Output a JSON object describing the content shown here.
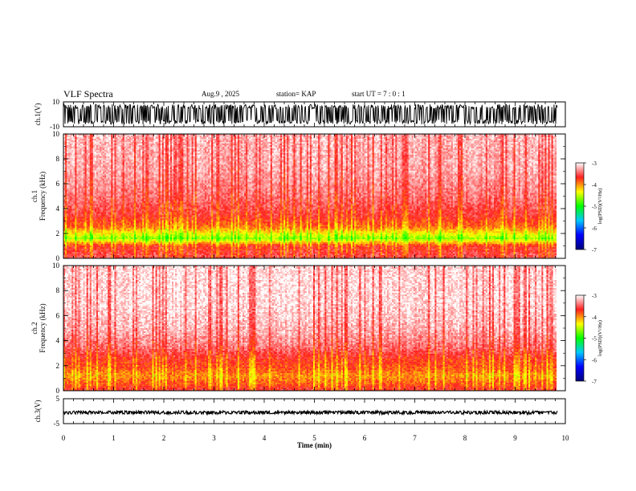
{
  "header": {
    "title": "VLF Spectra",
    "date": "Aug.9 , 2025",
    "station": "station= KAP",
    "start_ut": "start UT = 7 : 0 : 1"
  },
  "colorbar": {
    "label": "log(PSD)(V²/Hz)",
    "ticks": [
      "-3",
      "-4",
      "-5",
      "-6",
      "-7"
    ],
    "colors": [
      "#ffffff",
      "#ff2020",
      "#ffff00",
      "#00ff00",
      "#00c8ff",
      "#0000ff",
      "#00007a"
    ]
  },
  "chart_data": [
    {
      "type": "line",
      "panel": "waveform-ch1",
      "ylabel": "ch.1(V)",
      "ylim": [
        -10,
        10
      ],
      "yticks": [
        "10",
        "-10"
      ],
      "xlim": [
        0,
        10
      ],
      "signal_band": [
        -8,
        8
      ],
      "color": "#000000"
    },
    {
      "type": "heatmap",
      "panel": "spectrogram-ch1",
      "ylabel": "ch.1 Frequency (kHz)",
      "ylim": [
        0,
        10
      ],
      "yticks": [
        "0",
        "2",
        "4",
        "6",
        "8",
        "10"
      ],
      "xlim": [
        0,
        10
      ],
      "data_end_min": 9.82,
      "colorbar_range": [
        -7,
        -3
      ],
      "intensity_profile": [
        {
          "f": 0.0,
          "logpsd": -3.5
        },
        {
          "f": 0.5,
          "logpsd": -3.6
        },
        {
          "f": 1.0,
          "logpsd": -3.7
        },
        {
          "f": 1.6,
          "logpsd": -4.6
        },
        {
          "f": 2.0,
          "logpsd": -4.3
        },
        {
          "f": 2.5,
          "logpsd": -3.9
        },
        {
          "f": 3.5,
          "logpsd": -3.6
        },
        {
          "f": 5.0,
          "logpsd": -3.4
        },
        {
          "f": 7.0,
          "logpsd": -3.25
        },
        {
          "f": 10.0,
          "logpsd": -3.2
        }
      ]
    },
    {
      "type": "heatmap",
      "panel": "spectrogram-ch2",
      "ylabel": "ch.2 Frequency (kHz)",
      "ylim": [
        0,
        10
      ],
      "yticks": [
        "0",
        "2",
        "4",
        "6",
        "8",
        "10"
      ],
      "xlim": [
        0,
        10
      ],
      "data_end_min": 9.82,
      "colorbar_range": [
        -7,
        -3
      ],
      "intensity_profile": [
        {
          "f": 0.0,
          "logpsd": -3.6
        },
        {
          "f": 0.5,
          "logpsd": -3.8
        },
        {
          "f": 1.2,
          "logpsd": -4.0
        },
        {
          "f": 1.8,
          "logpsd": -3.8
        },
        {
          "f": 2.5,
          "logpsd": -3.7
        },
        {
          "f": 3.5,
          "logpsd": -3.4
        },
        {
          "f": 5.0,
          "logpsd": -3.2
        },
        {
          "f": 7.0,
          "logpsd": -3.1
        },
        {
          "f": 10.0,
          "logpsd": -3.1
        }
      ]
    },
    {
      "type": "line",
      "panel": "waveform-ch3",
      "ylabel": "ch.3(V)",
      "ylim": [
        -5,
        5
      ],
      "yticks": [
        "5",
        "-5"
      ],
      "xlim": [
        0,
        10
      ],
      "signal_band": [
        -1.2,
        0.2
      ],
      "color": "#000000"
    }
  ],
  "xaxis": {
    "label": "Time (min)",
    "ticks": [
      "0",
      "1",
      "2",
      "3",
      "4",
      "5",
      "6",
      "7",
      "8",
      "9",
      "10"
    ]
  }
}
